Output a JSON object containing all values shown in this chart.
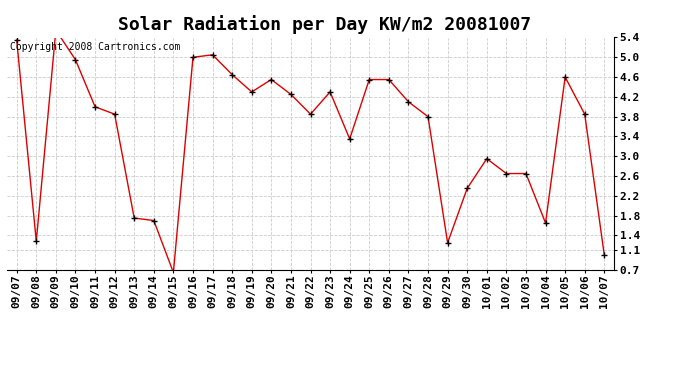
{
  "title": "Solar Radiation per Day KW/m2 20081007",
  "copyright_text": "Copyright 2008 Cartronics.com",
  "labels": [
    "09/07",
    "09/08",
    "09/09",
    "09/10",
    "09/11",
    "09/12",
    "09/13",
    "09/14",
    "09/15",
    "09/16",
    "09/17",
    "09/18",
    "09/19",
    "09/20",
    "09/21",
    "09/22",
    "09/23",
    "09/24",
    "09/25",
    "09/26",
    "09/27",
    "09/28",
    "09/29",
    "09/30",
    "10/01",
    "10/02",
    "10/03",
    "10/04",
    "10/05",
    "10/06",
    "10/07"
  ],
  "values": [
    5.35,
    1.28,
    5.55,
    4.95,
    4.0,
    3.85,
    1.75,
    1.7,
    0.65,
    5.0,
    5.05,
    4.65,
    4.3,
    4.55,
    4.25,
    3.85,
    4.3,
    3.35,
    4.55,
    4.55,
    4.1,
    3.8,
    1.25,
    2.35,
    2.95,
    2.65,
    2.65,
    1.65,
    4.6,
    3.85,
    1.0
  ],
  "line_color": "#dd0000",
  "marker_color": "#000000",
  "bg_color": "#ffffff",
  "grid_color": "#cccccc",
  "ylim_min": 0.7,
  "ylim_max": 5.4,
  "yticks": [
    0.7,
    1.1,
    1.4,
    1.8,
    2.2,
    2.6,
    3.0,
    3.4,
    3.8,
    4.2,
    4.6,
    5.0,
    5.4
  ],
  "title_fontsize": 13,
  "tick_fontsize": 8,
  "copyright_fontsize": 7
}
